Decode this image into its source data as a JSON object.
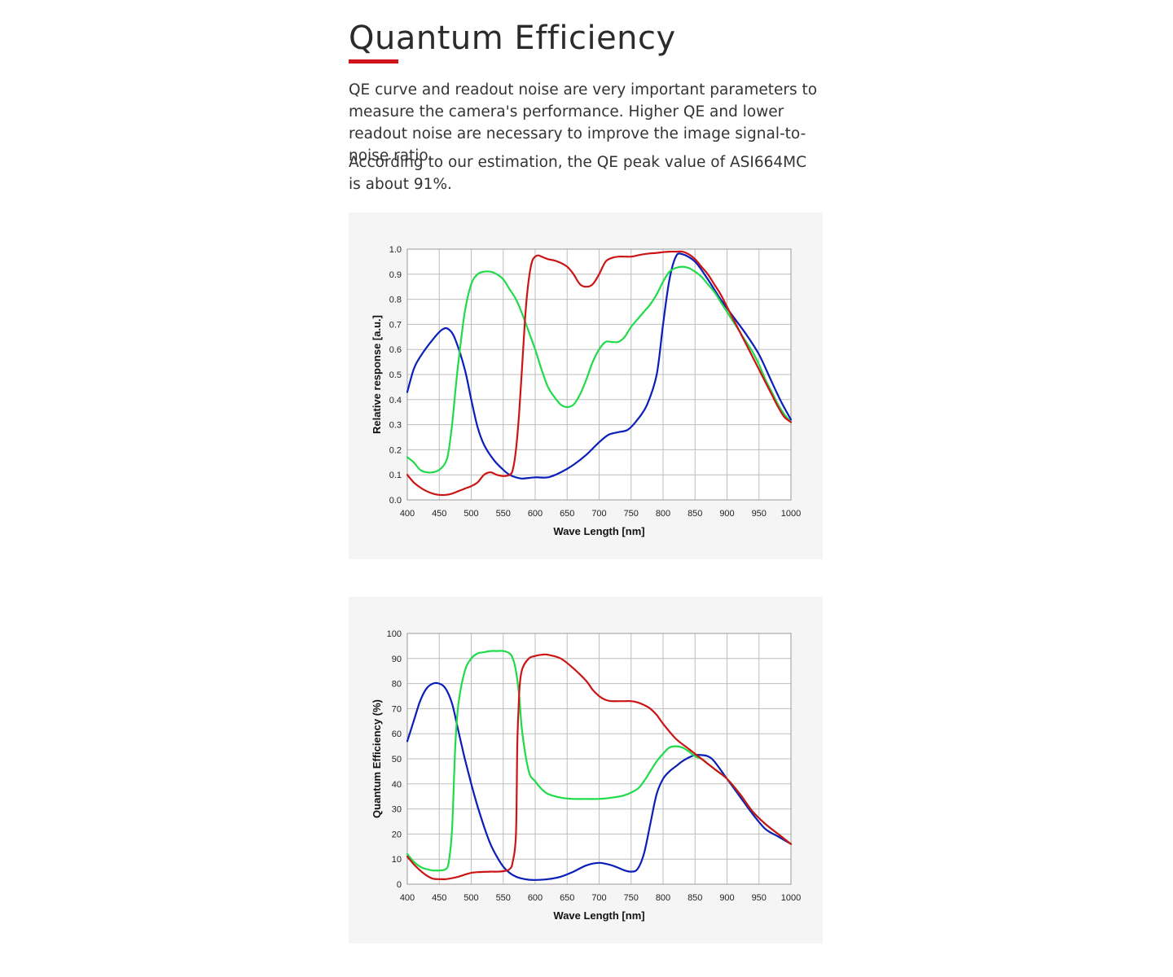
{
  "section": {
    "title": "Quantum Efficiency",
    "accent_color": "#d0141a",
    "paragraphs": [
      "QE curve and readout noise are very important parameters to measure the camera's performance. Higher QE and lower readout noise are necessary to improve the image signal-to-noise ratio.",
      "According to our estimation, the QE peak value of ASI664MC is about 91%."
    ]
  },
  "chart_data": [
    {
      "type": "line",
      "xlabel": "Wave Length [nm]",
      "ylabel": "Relative response  [a.u.]",
      "xlim": [
        400,
        1000
      ],
      "ylim": [
        0,
        1
      ],
      "xticks": [
        400,
        450,
        500,
        550,
        600,
        650,
        700,
        750,
        800,
        850,
        900,
        950,
        1000
      ],
      "yticks": [
        0.0,
        0.1,
        0.2,
        0.3,
        0.4,
        0.5,
        0.6,
        0.7,
        0.8,
        0.9,
        1.0
      ],
      "ytick_labels": [
        "0.0",
        "0.1",
        "0.2",
        "0.3",
        "0.4",
        "0.5",
        "0.6",
        "0.7",
        "0.8",
        "0.9",
        "1.0"
      ],
      "grid": true,
      "series": [
        {
          "color": "#0a1eb8",
          "x": [
            400,
            410,
            420,
            440,
            455,
            465,
            475,
            490,
            500,
            510,
            520,
            535,
            550,
            560,
            570,
            580,
            600,
            620,
            640,
            660,
            680,
            700,
            715,
            730,
            745,
            760,
            775,
            790,
            800,
            810,
            820,
            830,
            850,
            870,
            890,
            910,
            930,
            950,
            970,
            985,
            1000
          ],
          "y": [
            0.43,
            0.52,
            0.57,
            0.64,
            0.68,
            0.68,
            0.64,
            0.52,
            0.4,
            0.29,
            0.22,
            0.16,
            0.12,
            0.1,
            0.09,
            0.085,
            0.09,
            0.09,
            0.11,
            0.14,
            0.18,
            0.23,
            0.26,
            0.27,
            0.28,
            0.32,
            0.38,
            0.5,
            0.7,
            0.88,
            0.97,
            0.98,
            0.95,
            0.88,
            0.8,
            0.73,
            0.66,
            0.58,
            0.47,
            0.39,
            0.32
          ]
        },
        {
          "color": "#1fdb4a",
          "x": [
            400,
            410,
            420,
            430,
            440,
            450,
            460,
            465,
            470,
            475,
            480,
            490,
            500,
            510,
            520,
            530,
            540,
            550,
            560,
            570,
            580,
            590,
            600,
            610,
            620,
            630,
            640,
            650,
            660,
            670,
            680,
            690,
            700,
            710,
            720,
            730,
            740,
            750,
            760,
            770,
            780,
            790,
            800,
            810,
            820,
            830,
            840,
            850,
            860,
            870,
            880,
            890,
            900,
            910,
            920,
            930,
            940,
            950,
            960,
            970,
            980,
            990,
            1000
          ],
          "y": [
            0.17,
            0.15,
            0.12,
            0.11,
            0.11,
            0.12,
            0.15,
            0.2,
            0.3,
            0.43,
            0.55,
            0.75,
            0.86,
            0.9,
            0.91,
            0.91,
            0.9,
            0.88,
            0.84,
            0.8,
            0.74,
            0.67,
            0.6,
            0.52,
            0.45,
            0.41,
            0.38,
            0.37,
            0.38,
            0.42,
            0.48,
            0.55,
            0.6,
            0.63,
            0.63,
            0.63,
            0.65,
            0.69,
            0.72,
            0.75,
            0.78,
            0.82,
            0.87,
            0.91,
            0.925,
            0.93,
            0.925,
            0.91,
            0.89,
            0.86,
            0.83,
            0.79,
            0.75,
            0.71,
            0.67,
            0.63,
            0.59,
            0.54,
            0.48,
            0.43,
            0.38,
            0.34,
            0.31
          ]
        },
        {
          "color": "#cc1414",
          "x": [
            400,
            410,
            420,
            430,
            440,
            450,
            460,
            470,
            480,
            490,
            500,
            510,
            520,
            530,
            540,
            550,
            560,
            565,
            570,
            575,
            580,
            585,
            590,
            595,
            600,
            605,
            610,
            620,
            630,
            640,
            650,
            660,
            670,
            680,
            690,
            700,
            710,
            720,
            730,
            740,
            750,
            760,
            770,
            780,
            790,
            800,
            810,
            820,
            830,
            840,
            850,
            860,
            870,
            880,
            890,
            900,
            910,
            920,
            930,
            940,
            950,
            960,
            970,
            980,
            990,
            1000
          ],
          "y": [
            0.1,
            0.07,
            0.05,
            0.035,
            0.025,
            0.02,
            0.02,
            0.025,
            0.035,
            0.045,
            0.055,
            0.07,
            0.1,
            0.11,
            0.1,
            0.095,
            0.1,
            0.12,
            0.2,
            0.35,
            0.55,
            0.75,
            0.88,
            0.95,
            0.97,
            0.975,
            0.97,
            0.96,
            0.955,
            0.945,
            0.93,
            0.9,
            0.86,
            0.85,
            0.86,
            0.9,
            0.95,
            0.965,
            0.97,
            0.97,
            0.97,
            0.975,
            0.98,
            0.983,
            0.985,
            0.988,
            0.99,
            0.99,
            0.99,
            0.98,
            0.96,
            0.93,
            0.9,
            0.86,
            0.82,
            0.77,
            0.72,
            0.67,
            0.62,
            0.57,
            0.52,
            0.47,
            0.42,
            0.37,
            0.33,
            0.31
          ]
        }
      ]
    },
    {
      "type": "line",
      "xlabel": "Wave Length [nm]",
      "ylabel": "Quantum Efficiency (%)",
      "xlim": [
        400,
        1000
      ],
      "ylim": [
        0,
        100
      ],
      "xticks": [
        400,
        450,
        500,
        550,
        600,
        650,
        700,
        750,
        800,
        850,
        900,
        950,
        1000
      ],
      "yticks": [
        0,
        10,
        20,
        30,
        40,
        50,
        60,
        70,
        80,
        90,
        100
      ],
      "ytick_labels": [
        "0",
        "10",
        "20",
        "30",
        "40",
        "50",
        "60",
        "70",
        "80",
        "90",
        "100"
      ],
      "grid": true,
      "series": [
        {
          "color": "#0a1eb8",
          "x": [
            400,
            410,
            420,
            430,
            440,
            450,
            460,
            470,
            480,
            490,
            500,
            510,
            520,
            530,
            540,
            550,
            560,
            570,
            580,
            590,
            600,
            620,
            640,
            660,
            680,
            700,
            720,
            740,
            750,
            760,
            770,
            780,
            790,
            800,
            810,
            820,
            830,
            840,
            850,
            860,
            870,
            880,
            900,
            920,
            940,
            960,
            980,
            1000
          ],
          "y": [
            57,
            65,
            73,
            78,
            80,
            80,
            78,
            72,
            61,
            50,
            40,
            31,
            23,
            16,
            11,
            7,
            4.5,
            3,
            2.2,
            1.8,
            1.7,
            2,
            3,
            5,
            7.5,
            8.5,
            7.5,
            5.5,
            5,
            6,
            12,
            24,
            36,
            42,
            45,
            47,
            49,
            50.5,
            51.5,
            51.5,
            51,
            49,
            42,
            35,
            28,
            22,
            19,
            16
          ]
        },
        {
          "color": "#1fdb4a",
          "x": [
            400,
            410,
            420,
            430,
            440,
            450,
            460,
            465,
            470,
            475,
            480,
            490,
            500,
            510,
            520,
            530,
            540,
            550,
            560,
            565,
            570,
            575,
            580,
            590,
            600,
            610,
            620,
            640,
            660,
            680,
            700,
            720,
            740,
            760,
            770,
            780,
            790,
            800,
            810,
            820,
            830,
            840,
            850,
            860,
            870,
            880,
            900,
            920,
            940,
            960,
            980,
            1000
          ],
          "y": [
            12,
            9,
            7,
            6,
            5.5,
            5.5,
            6,
            9,
            22,
            55,
            72,
            85,
            90,
            92,
            92.5,
            93,
            93,
            93,
            92,
            90,
            85,
            75,
            60,
            45,
            41,
            38,
            36,
            34.5,
            34,
            34,
            34,
            34.5,
            35.5,
            38,
            41,
            45,
            49,
            52,
            54.5,
            55,
            54.5,
            53,
            51,
            50,
            48,
            46,
            42,
            36,
            29,
            24,
            20,
            16
          ]
        },
        {
          "color": "#cc1414",
          "x": [
            400,
            410,
            420,
            430,
            440,
            450,
            460,
            470,
            480,
            490,
            500,
            510,
            520,
            530,
            540,
            550,
            560,
            565,
            570,
            572,
            574,
            576,
            580,
            590,
            600,
            610,
            620,
            640,
            660,
            680,
            690,
            700,
            710,
            720,
            730,
            740,
            750,
            760,
            770,
            780,
            790,
            800,
            820,
            840,
            860,
            880,
            900,
            920,
            940,
            960,
            980,
            1000
          ],
          "y": [
            11,
            8,
            5.5,
            3.5,
            2.2,
            2,
            2,
            2.4,
            3,
            3.8,
            4.5,
            4.8,
            4.9,
            5,
            5,
            5.2,
            6,
            9,
            20,
            55,
            70,
            80,
            86,
            90,
            91,
            91.5,
            91.5,
            90,
            86,
            81,
            77.5,
            75,
            73.5,
            73,
            73,
            73,
            73,
            72.5,
            71.5,
            70,
            67.5,
            64,
            58,
            54,
            50,
            46,
            42,
            36,
            29,
            24,
            20,
            16
          ]
        }
      ]
    }
  ]
}
